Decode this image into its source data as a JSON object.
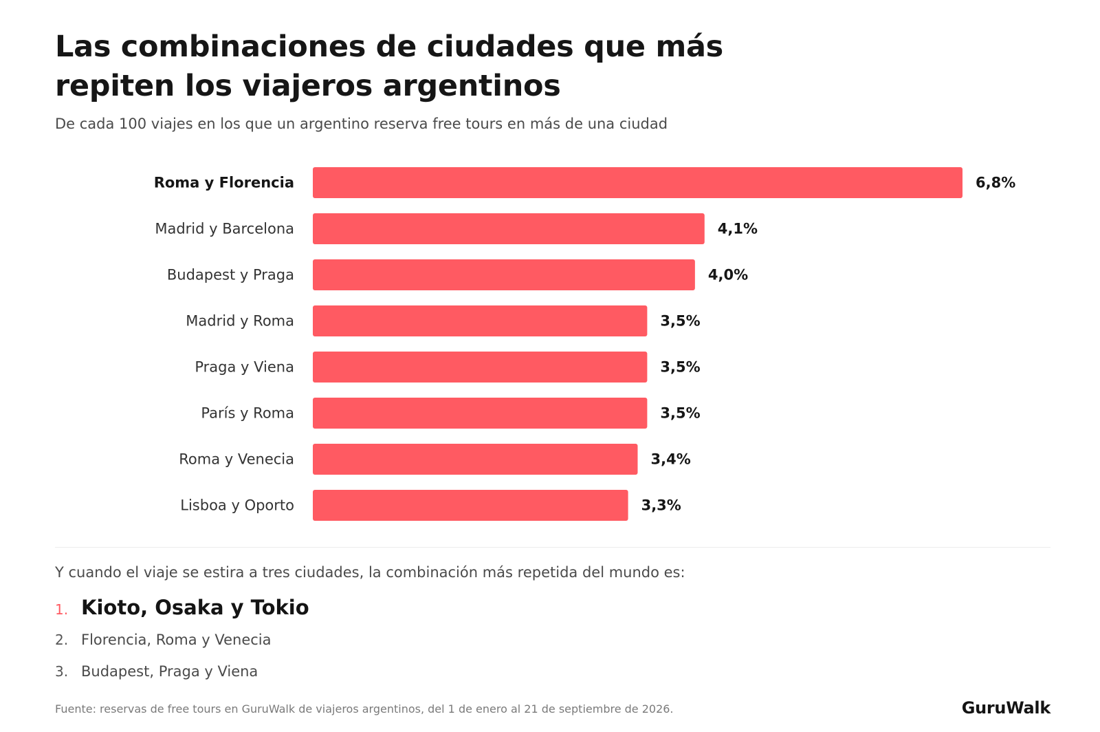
{
  "title": "Las combinaciones de ciudades que más repiten los viajeros argentinos",
  "subtitle": "De cada 100 viajes en los que un argentino reserva free tours en más de una ciudad",
  "chart_data": {
    "type": "bar",
    "orientation": "horizontal",
    "categories": [
      "Roma y Florencia",
      "Madrid y Barcelona",
      "Budapest y Praga",
      "Madrid y Roma",
      "Praga y Viena",
      "París y Roma",
      "Roma y Venecia",
      "Lisboa y Oporto"
    ],
    "values": [
      6.8,
      4.1,
      4.0,
      3.5,
      3.5,
      3.5,
      3.4,
      3.3
    ],
    "value_labels": [
      "6,8%",
      "4,1%",
      "4,0%",
      "3,5%",
      "3,5%",
      "3,5%",
      "3,4%",
      "3,3%"
    ],
    "unit": "%",
    "xlim": [
      0,
      6.8
    ],
    "grid": false,
    "bar_color": "#ff5a62",
    "highlighted_category": "Roma y Florencia"
  },
  "three_cities": {
    "intro": "Y cuando el viaje se estira a tres ciudades, la combinación más repetida del mundo es:",
    "items": [
      {
        "rank": "1.",
        "label": "Kioto, Osaka y Tokio"
      },
      {
        "rank": "2.",
        "label": "Florencia, Roma y Venecia"
      },
      {
        "rank": "3.",
        "label": "Budapest, Praga y Viena"
      }
    ],
    "accent_color": "#ff5a62"
  },
  "source": "Fuente: reservas de free tours en GuruWalk de viajeros argentinos, del 1 de enero al 21 de septiembre de 2026.",
  "brand": "GuruWalk"
}
